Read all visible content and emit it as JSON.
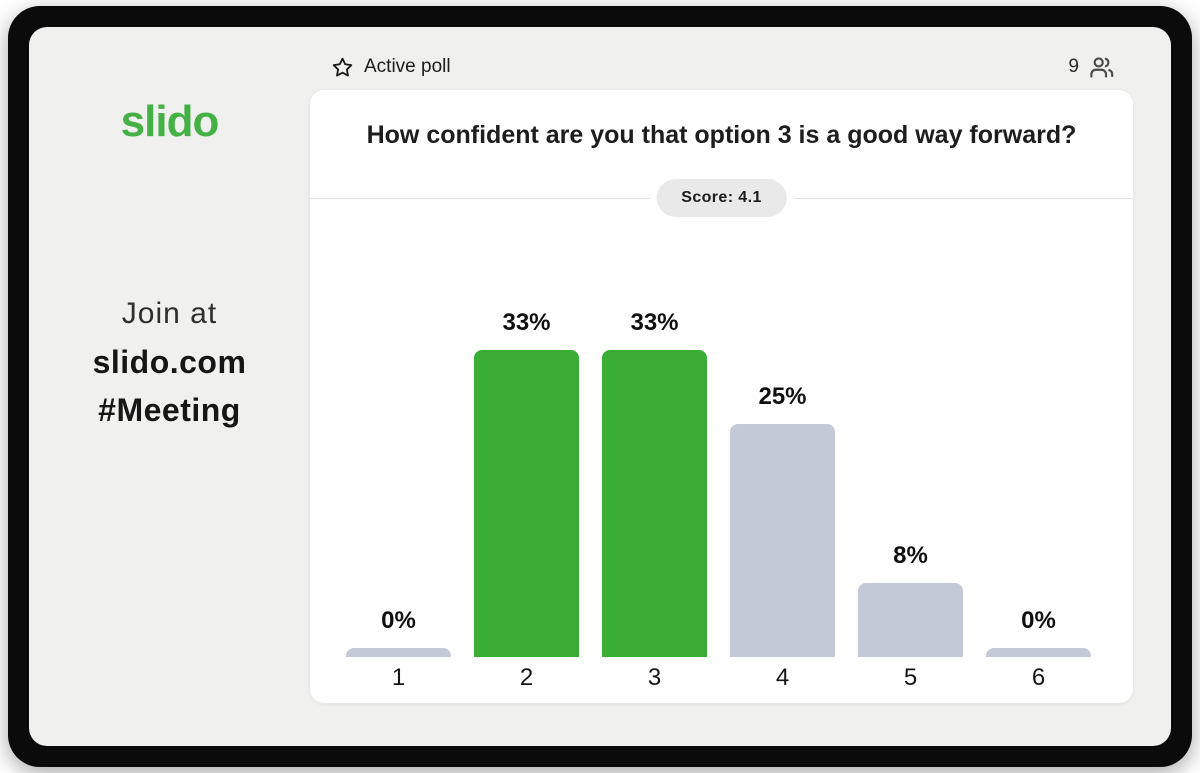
{
  "sidebar": {
    "logo_text": "slido",
    "join": {
      "line1": "Join at",
      "line2": "slido.com",
      "line3": "#Meeting"
    }
  },
  "header": {
    "status_label": "Active poll",
    "participants_count": "9"
  },
  "poll_card": {
    "question": "How confident are you that option 3 is a good way forward?",
    "score_badge": "Score: 4.1",
    "score_value": 4.1
  },
  "chart_data": {
    "type": "bar",
    "title": "How confident are you that option 3 is a good way forward?",
    "categories": [
      "1",
      "2",
      "3",
      "4",
      "5",
      "6"
    ],
    "values": [
      0,
      33,
      33,
      25,
      8,
      0
    ],
    "value_labels": [
      "0%",
      "33%",
      "33%",
      "25%",
      "8%",
      "0%"
    ],
    "highlighted_categories": [
      "2",
      "3"
    ],
    "bar_colors": [
      "#c4c9d7",
      "#3aad35",
      "#3aad35",
      "#c4c9d7",
      "#c4c9d7",
      "#c4c9d7"
    ],
    "xlabel": "",
    "ylabel": "",
    "ylim": [
      0,
      33
    ],
    "grid": false,
    "legend": false
  },
  "colors": {
    "accent_green": "#3aad35",
    "bar_default": "#c4c9d7",
    "logo_green": "#45b045",
    "screen_background": "#f0f0ee",
    "frame_black": "#0b0b0b",
    "badge_background": "#e9e9e9"
  }
}
